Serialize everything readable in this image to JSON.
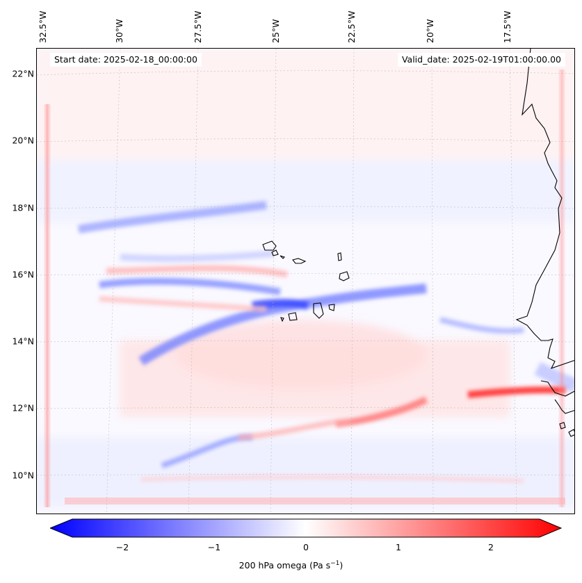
{
  "map": {
    "start_date": "Start date: 2025-02-18_00:00:00",
    "valid_date": "Valid_date: 2025-02-19T01:00:00.00",
    "variable": "200 hPa omega",
    "units": "(Pa s",
    "units_exp": "−1",
    "units_close": ")",
    "lat_labels": [
      "22°N",
      "20°N",
      "18°N",
      "16°N",
      "14°N",
      "12°N",
      "10°N"
    ],
    "lon_labels": [
      "32.5°W",
      "30°W",
      "27.5°W",
      "25°W",
      "22.5°W",
      "20°W",
      "17.5°W"
    ],
    "colorbar": {
      "ticks": [
        "−2",
        "−1",
        "0",
        "1",
        "2"
      ],
      "vmin": -2.7,
      "vmax": 2.7,
      "min_color": "#0000ff",
      "mid_color": "#ffffff",
      "max_color": "#ff0000"
    },
    "coastline_color": "#000000",
    "grid_color": "#b0b0b0"
  }
}
